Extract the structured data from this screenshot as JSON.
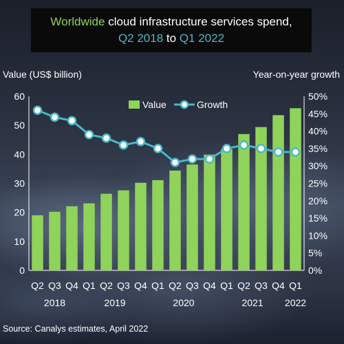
{
  "title": {
    "line1_highlight": "Worldwide",
    "line1_rest": "cloud infrastructure services spend,",
    "line2_start": "Q2 2018",
    "line2_mid": "to",
    "line2_end": "Q1 2022"
  },
  "colors": {
    "bar": "#8fd35a",
    "line": "#49b8c9",
    "marker_fill": "#ffffff",
    "title_highlight": "#8fd35a",
    "title_dates": "#4fb7c9"
  },
  "chart_data": {
    "type": "bar",
    "ylabel": "Value (US$ billion)",
    "y2label": "Year-on-year growth",
    "ylim": [
      0,
      60
    ],
    "y_ticks": [
      "0",
      "10",
      "20",
      "30",
      "40",
      "50",
      "60"
    ],
    "y2lim": [
      0,
      50
    ],
    "y2_ticks": [
      "0%",
      "5%",
      "10%",
      "15%",
      "20%",
      "25%",
      "30%",
      "35%",
      "40%",
      "45%",
      "50%"
    ],
    "grid": false,
    "legend_position": "top",
    "categories": [
      "Q2",
      "Q3",
      "Q4",
      "Q1",
      "Q2",
      "Q3",
      "Q4",
      "Q1",
      "Q2",
      "Q3",
      "Q4",
      "Q1",
      "Q2",
      "Q3",
      "Q4",
      "Q1"
    ],
    "years": [
      {
        "label": "2018",
        "start": 0,
        "end": 2
      },
      {
        "label": "2019",
        "start": 3,
        "end": 6
      },
      {
        "label": "2020",
        "start": 7,
        "end": 10
      },
      {
        "label": "2021",
        "start": 11,
        "end": 14
      },
      {
        "label": "2022",
        "start": 15,
        "end": 15
      }
    ],
    "series": [
      {
        "name": "Value",
        "type": "bar",
        "axis": "left",
        "values": [
          19.0,
          20.2,
          22.1,
          23.1,
          26.4,
          27.6,
          30.2,
          31.1,
          34.4,
          36.5,
          39.9,
          41.8,
          47.0,
          49.4,
          53.5,
          55.9
        ]
      },
      {
        "name": "Growth",
        "type": "line",
        "axis": "right",
        "values": [
          46,
          44,
          43,
          39,
          38,
          36,
          37,
          35,
          31,
          32,
          32,
          35,
          36,
          35,
          34,
          34
        ]
      }
    ]
  },
  "source": "Source: Canalys estimates, April 2022"
}
